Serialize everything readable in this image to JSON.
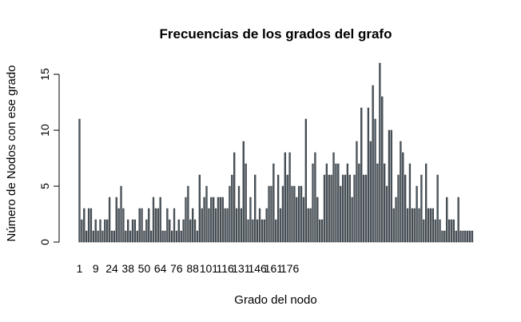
{
  "chart_data": {
    "type": "bar",
    "title": "Frecuencias de los grados del grafo",
    "xlabel": "Grado del nodo",
    "ylabel": "Número de Nodos con ese grado",
    "x_tick_labels": [
      "1",
      "9",
      "24",
      "38",
      "50",
      "64",
      "76",
      "88",
      "101",
      "116",
      "131",
      "146",
      "161",
      "176"
    ],
    "y_ticks": [
      0,
      5,
      10,
      15
    ],
    "ylim": [
      0,
      16
    ],
    "bar_color": "#4f5a62",
    "bar_outline": "#2d3338",
    "grid": false,
    "legend": "none",
    "values": [
      11,
      2,
      3,
      1,
      3,
      3,
      1,
      2,
      1,
      2,
      1,
      2,
      2,
      4,
      1,
      1,
      4,
      3,
      5,
      3,
      1,
      2,
      1,
      2,
      2,
      1,
      3,
      3,
      1,
      2,
      3,
      1,
      4,
      3,
      3,
      4,
      1,
      1,
      3,
      2,
      1,
      3,
      1,
      2,
      1,
      2,
      4,
      5,
      2,
      3,
      2,
      1,
      6,
      3,
      4,
      5,
      3,
      4,
      4,
      3,
      4,
      4,
      4,
      3,
      3,
      5,
      6,
      8,
      3,
      5,
      3,
      9,
      7,
      2,
      4,
      2,
      6,
      2,
      3,
      2,
      2,
      3,
      5,
      5,
      7,
      2,
      6,
      3,
      5,
      8,
      6,
      8,
      5,
      5,
      4,
      5,
      5,
      4,
      11,
      3,
      3,
      7,
      8,
      4,
      2,
      2,
      6,
      7,
      6,
      6,
      8,
      7,
      7,
      5,
      6,
      6,
      7,
      6,
      4,
      6,
      9,
      7,
      12,
      6,
      6,
      12,
      9,
      14,
      11,
      7,
      16,
      13,
      7,
      5,
      10,
      10,
      3,
      4,
      6,
      9,
      8,
      6,
      3,
      7,
      3,
      3,
      5,
      3,
      6,
      2,
      7,
      3,
      3,
      3,
      2,
      6,
      2,
      1,
      1,
      4,
      2,
      2,
      2,
      1,
      4,
      1,
      1,
      1,
      1,
      1,
      1
    ]
  }
}
